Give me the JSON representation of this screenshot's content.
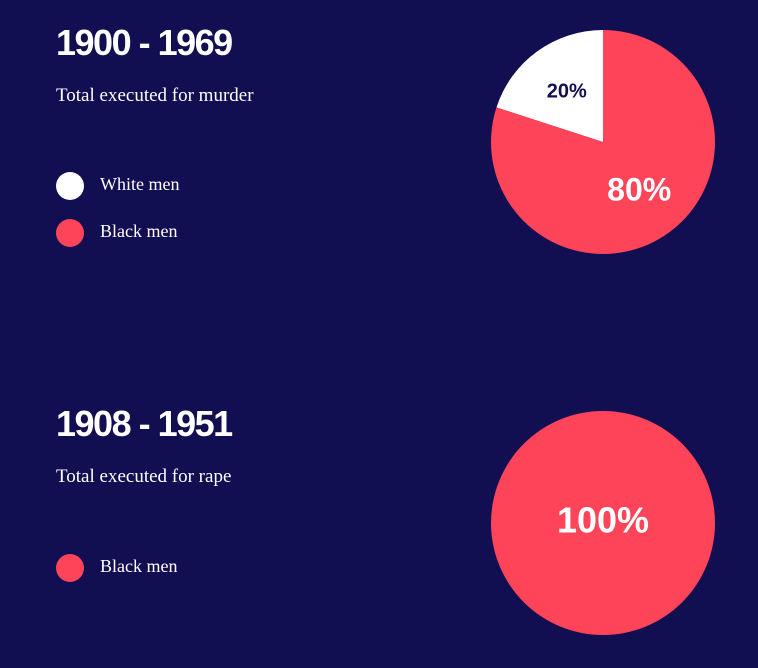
{
  "chart_data": [
    {
      "type": "pie",
      "title": "1900 - 1969",
      "subtitle": "Total executed for murder",
      "categories": [
        "White men",
        "Black men"
      ],
      "values": [
        20,
        80
      ],
      "value_labels": [
        "20%",
        "80%"
      ],
      "colors": [
        "#ffffff",
        "#fd4458"
      ],
      "legend": true
    },
    {
      "type": "pie",
      "title": "1908 - 1951",
      "subtitle": "Total executed for rape",
      "categories": [
        "Black men"
      ],
      "values": [
        100
      ],
      "value_labels": [
        "100%"
      ],
      "colors": [
        "#fd4458"
      ],
      "legend": true
    }
  ]
}
